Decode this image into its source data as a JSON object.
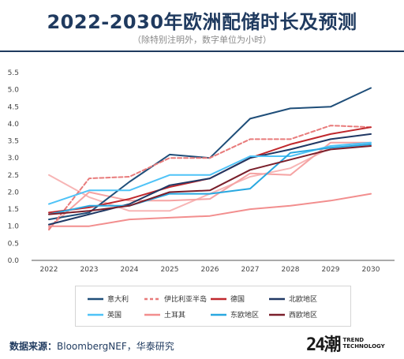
{
  "header": {
    "title": "2022-2030年欧洲配储时长及预测",
    "subtitle": "（除特别注明外，数字单位为小时）"
  },
  "footer": {
    "source_label": "数据来源：",
    "source_text": "BloombergNEF，华泰研究",
    "logo_mark": "24潮",
    "logo_line1": "TREND",
    "logo_line2": "TECHNOLOGY"
  },
  "chart_data": {
    "type": "line",
    "x": [
      "2022",
      "2023",
      "2024",
      "2025",
      "2026",
      "2027",
      "2028",
      "2029",
      "2030"
    ],
    "ylim": [
      0,
      5.5
    ],
    "yticks": [
      "0.0",
      "0.5",
      "1.0",
      "1.5",
      "2.0",
      "2.5",
      "3.0",
      "3.5",
      "4.0",
      "4.5",
      "5.0",
      "5.5"
    ],
    "grid": false,
    "legend_position": "bottom",
    "series": [
      {
        "name": "意大利",
        "color": "#1f4e79",
        "dashed": false,
        "values": [
          1.2,
          1.4,
          2.3,
          3.1,
          3.0,
          4.15,
          4.45,
          4.5,
          5.05
        ]
      },
      {
        "name": "伊比利亚半岛",
        "color": "#e87b7b",
        "dashed": true,
        "values": [
          0.9,
          2.4,
          2.45,
          3.0,
          3.0,
          3.55,
          3.55,
          3.95,
          3.9
        ]
      },
      {
        "name": "德国",
        "color": "#c0282d",
        "dashed": false,
        "values": [
          1.4,
          1.55,
          1.8,
          2.15,
          2.4,
          3.0,
          3.4,
          3.7,
          3.9
        ]
      },
      {
        "name": "北欧地区",
        "color": "#203864",
        "dashed": false,
        "values": [
          1.05,
          1.35,
          1.65,
          2.2,
          2.4,
          3.0,
          3.25,
          3.55,
          3.7
        ]
      },
      {
        "name": "英国",
        "color": "#4fc3f7",
        "dashed": false,
        "values": [
          1.65,
          2.05,
          2.05,
          2.5,
          2.5,
          3.05,
          3.05,
          3.35,
          3.45
        ]
      },
      {
        "name": "土耳其",
        "color": "#f28e8e",
        "dashed": false,
        "values": [
          1.0,
          1.0,
          1.2,
          1.25,
          1.3,
          1.5,
          1.6,
          1.75,
          1.95
        ]
      },
      {
        "name": "东欧地区",
        "color": "#29a8e0",
        "dashed": false,
        "values": [
          1.35,
          1.6,
          1.6,
          1.95,
          1.95,
          2.1,
          3.15,
          3.3,
          3.4
        ]
      },
      {
        "name": "西欧地区",
        "color": "#7a1f2b",
        "dashed": false,
        "values": [
          1.35,
          1.45,
          1.6,
          2.0,
          2.05,
          2.65,
          2.95,
          3.25,
          3.35
        ]
      },
      {
        "name": "",
        "color": "#f7b5b5",
        "dashed": false,
        "values": [
          2.5,
          1.85,
          1.45,
          1.45,
          1.95,
          2.45,
          2.7,
          3.3,
          3.35
        ]
      },
      {
        "name": "",
        "color": "#f5a3a3",
        "dashed": false,
        "values": [
          0.95,
          2.0,
          1.75,
          1.75,
          1.8,
          2.55,
          2.5,
          3.45,
          3.45
        ]
      }
    ]
  }
}
